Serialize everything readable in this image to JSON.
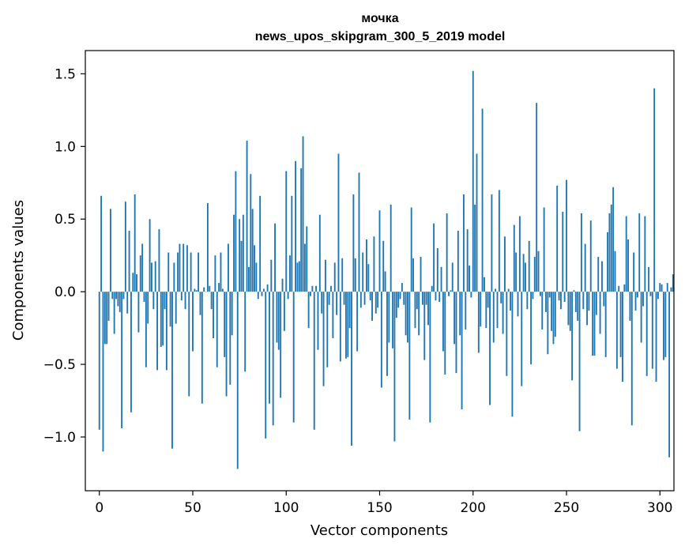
{
  "chart_data": {
    "type": "bar",
    "title": "мочка",
    "subtitle": "news_upos_skipgram_300_5_2019 model",
    "xlabel": "Vector components",
    "ylabel": "Components values",
    "xlim": [
      -7.5,
      307.5
    ],
    "ylim": [
      -1.37,
      1.66
    ],
    "xticks": [
      0,
      50,
      100,
      150,
      200,
      250,
      300
    ],
    "yticks": [
      -1.0,
      -0.5,
      0.0,
      0.5,
      1.0,
      1.5
    ],
    "ytick_labels": [
      "−1.0",
      "−0.5",
      "0.0",
      "0.5",
      "1.0",
      "1.5"
    ],
    "bar_color": "#1f77b4",
    "values": [
      -0.95,
      0.66,
      -1.1,
      -0.36,
      -0.36,
      -0.2,
      0.57,
      -0.05,
      -0.29,
      -0.05,
      -0.1,
      -0.14,
      -0.94,
      -0.05,
      0.62,
      -0.15,
      0.42,
      -0.83,
      0.13,
      0.67,
      0.12,
      -0.28,
      0.25,
      0.33,
      -0.07,
      -0.52,
      -0.22,
      0.5,
      0.2,
      -0.12,
      0.21,
      -0.54,
      0.43,
      -0.38,
      -0.37,
      -0.12,
      -0.54,
      0.27,
      -0.24,
      -1.08,
      0.2,
      -0.22,
      0.27,
      0.33,
      -0.06,
      0.33,
      -0.12,
      0.32,
      -0.72,
      0.27,
      -0.41,
      0.02,
      0.01,
      0.27,
      -0.16,
      -0.77,
      0.03,
      0.0,
      0.61,
      0.04,
      -0.12,
      -0.32,
      0.25,
      -0.52,
      0.06,
      0.27,
      0.02,
      -0.45,
      -0.72,
      0.33,
      -0.64,
      -0.3,
      0.53,
      0.83,
      -1.22,
      0.5,
      0.35,
      0.53,
      -0.55,
      1.04,
      0.17,
      0.81,
      0.57,
      0.32,
      0.2,
      -0.05,
      0.66,
      -0.03,
      0.02,
      -1.01,
      0.05,
      -0.77,
      0.22,
      -0.92,
      0.47,
      -0.35,
      -0.4,
      -0.73,
      0.09,
      -0.27,
      0.83,
      -0.05,
      0.25,
      0.66,
      -0.9,
      0.9,
      0.2,
      0.21,
      0.85,
      1.07,
      0.33,
      0.45,
      -0.25,
      -0.03,
      0.04,
      -0.95,
      0.04,
      -0.4,
      0.53,
      -0.15,
      -0.65,
      0.22,
      -0.52,
      -0.09,
      0.04,
      -0.32,
      0.2,
      -0.16,
      0.95,
      -0.48,
      0.23,
      -0.09,
      -0.46,
      -0.45,
      -0.25,
      -1.06,
      0.67,
      0.23,
      -0.41,
      0.82,
      -0.11,
      0.27,
      -0.09,
      0.36,
      0.19,
      -0.06,
      -0.2,
      0.38,
      -0.15,
      -0.11,
      0.56,
      -0.66,
      0.35,
      0.14,
      -0.58,
      -0.35,
      0.6,
      -0.39,
      -1.03,
      -0.18,
      -0.11,
      -0.05,
      0.06,
      -0.09,
      -0.3,
      -0.35,
      -0.88,
      0.58,
      0.23,
      -0.25,
      -0.12,
      -0.3,
      0.24,
      -0.09,
      -0.47,
      -0.09,
      -0.23,
      -0.9,
      0.04,
      0.47,
      -0.06,
      0.3,
      -0.07,
      0.17,
      -0.41,
      -0.57,
      0.54,
      -0.03,
      0.01,
      0.2,
      -0.36,
      -0.56,
      0.42,
      -0.3,
      -0.81,
      0.67,
      -0.26,
      0.43,
      0.18,
      -0.04,
      1.52,
      0.6,
      0.95,
      -0.42,
      -0.24,
      1.26,
      0.1,
      -0.25,
      -0.11,
      -0.78,
      0.67,
      -0.35,
      0.02,
      -0.25,
      0.7,
      -0.08,
      -0.29,
      0.38,
      -0.58,
      0.02,
      -0.13,
      -0.86,
      0.46,
      0.27,
      -0.17,
      0.52,
      -0.65,
      0.26,
      0.2,
      -0.12,
      0.35,
      -0.5,
      -0.05,
      0.24,
      1.3,
      0.28,
      -0.03,
      -0.26,
      0.58,
      -0.14,
      -0.43,
      -0.04,
      -0.27,
      -0.36,
      -0.31,
      0.73,
      -0.06,
      -0.12,
      0.55,
      -0.07,
      0.77,
      -0.23,
      -0.27,
      -0.61,
      0.01,
      -0.14,
      -0.2,
      -0.96,
      0.54,
      -0.12,
      0.33,
      -0.23,
      -0.13,
      0.49,
      -0.44,
      -0.44,
      -0.16,
      0.24,
      -0.29,
      0.21,
      -0.1,
      -0.45,
      0.41,
      0.54,
      0.6,
      0.72,
      0.28,
      -0.53,
      0.04,
      -0.45,
      -0.62,
      0.05,
      0.52,
      0.36,
      -0.2,
      -0.92,
      0.27,
      -0.13,
      -0.04,
      0.54,
      -0.35,
      -0.1,
      0.52,
      -0.58,
      0.17,
      -0.03,
      -0.53,
      1.4,
      -0.62,
      -0.05,
      0.06,
      0.05,
      -0.47,
      -0.45,
      0.06,
      -1.14,
      0.03,
      0.12
    ]
  }
}
